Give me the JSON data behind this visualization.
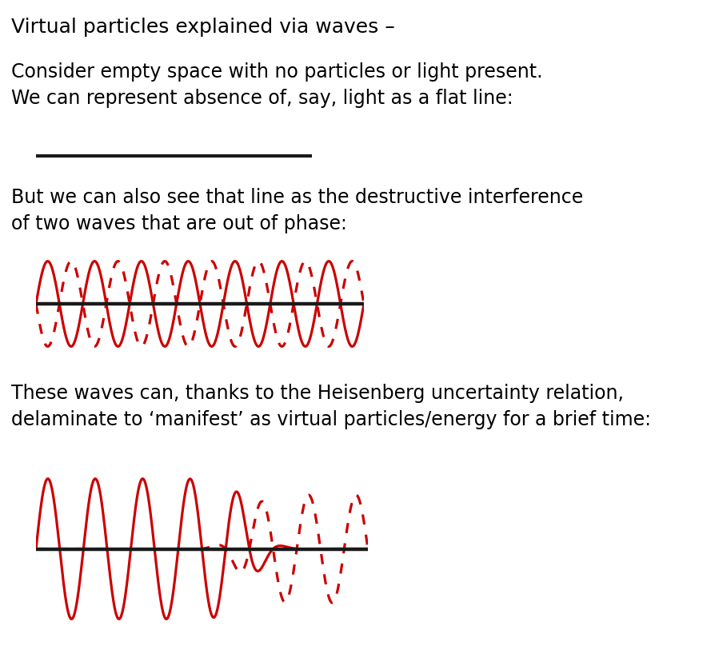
{
  "title": "Virtual particles explained via waves –",
  "text1": "Consider empty space with no particles or light present.\nWe can represent absence of, say, light as a flat line:",
  "text2": "But we can also see that line as the destructive interference\nof two waves that are out of phase:",
  "text3": "These waves can, thanks to the Heisenberg uncertainty relation,\ndelaminate to ‘manifest’ as virtual particles/energy for a brief time:",
  "bg_color": "#ffffff",
  "text_color": "#000000",
  "wave_color": "#cc0000",
  "line_color": "#1a1a1a",
  "title_fontsize": 18,
  "body_fontsize": 17,
  "fig_width": 8.94,
  "fig_height": 8.08
}
